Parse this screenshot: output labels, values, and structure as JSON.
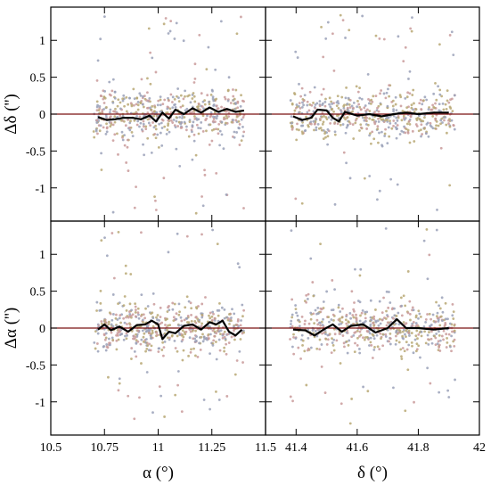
{
  "chart_data": {
    "type": "scatter",
    "x_axes": [
      {
        "label": "α (°)",
        "ticks": [
          "10.5",
          "10.75",
          "11",
          "11.25",
          "11.5"
        ],
        "range": [
          10.5,
          11.5
        ]
      },
      {
        "label": "δ (°)",
        "ticks": [
          "41.4",
          "41.6",
          "41.8",
          "42"
        ],
        "range": [
          41.3,
          42.0
        ]
      }
    ],
    "y_axes": [
      {
        "label": "Δδ ('')",
        "ticks": [
          "1",
          "0.5",
          "0",
          "-0.5",
          "-1"
        ],
        "range": [
          -1.45,
          1.45
        ]
      },
      {
        "label": "Δα ('')",
        "ticks": [
          "1",
          "0.5",
          "0",
          "-0.5",
          "-1"
        ],
        "range": [
          -1.45,
          1.45
        ]
      }
    ],
    "colors": {
      "point_a": "#b9a874",
      "point_b": "#c99a9a",
      "point_c": "#9aa1b8",
      "zero_line": "#7a1010",
      "trend": "#000000"
    },
    "panels": [
      {
        "id": "top-left",
        "xaxis": 0,
        "yaxis": 0,
        "seed": 11,
        "point_x_range": [
          10.7,
          11.4
        ],
        "n_points": 560,
        "trend": [
          [
            10.72,
            -0.04
          ],
          [
            10.76,
            -0.08
          ],
          [
            10.8,
            -0.07
          ],
          [
            10.84,
            -0.05
          ],
          [
            10.88,
            -0.05
          ],
          [
            10.92,
            -0.07
          ],
          [
            10.96,
            -0.02
          ],
          [
            10.99,
            -0.1
          ],
          [
            11.02,
            0.02
          ],
          [
            11.05,
            -0.06
          ],
          [
            11.08,
            0.06
          ],
          [
            11.12,
            0.0
          ],
          [
            11.16,
            0.08
          ],
          [
            11.2,
            0.02
          ],
          [
            11.24,
            0.09
          ],
          [
            11.28,
            0.03
          ],
          [
            11.32,
            0.07
          ],
          [
            11.36,
            0.03
          ],
          [
            11.4,
            0.05
          ]
        ]
      },
      {
        "id": "top-right",
        "xaxis": 1,
        "yaxis": 0,
        "seed": 23,
        "point_x_range": [
          41.38,
          41.92
        ],
        "n_points": 560,
        "trend": [
          [
            41.39,
            -0.03
          ],
          [
            41.42,
            -0.08
          ],
          [
            41.45,
            -0.05
          ],
          [
            41.47,
            0.06
          ],
          [
            41.5,
            0.05
          ],
          [
            41.52,
            -0.05
          ],
          [
            41.54,
            -0.1
          ],
          [
            41.56,
            0.03
          ],
          [
            41.6,
            -0.02
          ],
          [
            41.64,
            0.0
          ],
          [
            41.68,
            -0.03
          ],
          [
            41.72,
            0.0
          ],
          [
            41.76,
            0.02
          ],
          [
            41.8,
            0.0
          ],
          [
            41.85,
            0.02
          ],
          [
            41.9,
            0.02
          ]
        ]
      },
      {
        "id": "bottom-left",
        "xaxis": 0,
        "yaxis": 1,
        "seed": 37,
        "point_x_range": [
          10.7,
          11.4
        ],
        "n_points": 560,
        "trend": [
          [
            10.72,
            -0.02
          ],
          [
            10.75,
            0.05
          ],
          [
            10.78,
            -0.03
          ],
          [
            10.82,
            0.02
          ],
          [
            10.86,
            -0.05
          ],
          [
            10.9,
            0.04
          ],
          [
            10.94,
            0.05
          ],
          [
            10.97,
            0.1
          ],
          [
            11.0,
            0.05
          ],
          [
            11.02,
            -0.15
          ],
          [
            11.05,
            -0.05
          ],
          [
            11.08,
            -0.07
          ],
          [
            11.12,
            0.03
          ],
          [
            11.16,
            0.05
          ],
          [
            11.2,
            -0.02
          ],
          [
            11.24,
            0.08
          ],
          [
            11.27,
            0.05
          ],
          [
            11.3,
            0.1
          ],
          [
            11.33,
            -0.05
          ],
          [
            11.36,
            -0.1
          ],
          [
            11.39,
            -0.02
          ]
        ]
      },
      {
        "id": "bottom-right",
        "xaxis": 1,
        "yaxis": 1,
        "seed": 51,
        "point_x_range": [
          41.38,
          41.92
        ],
        "n_points": 560,
        "trend": [
          [
            41.39,
            -0.02
          ],
          [
            41.43,
            -0.03
          ],
          [
            41.46,
            -0.1
          ],
          [
            41.49,
            -0.02
          ],
          [
            41.52,
            0.05
          ],
          [
            41.55,
            -0.05
          ],
          [
            41.58,
            0.03
          ],
          [
            41.62,
            0.05
          ],
          [
            41.66,
            -0.06
          ],
          [
            41.7,
            0.0
          ],
          [
            41.73,
            0.12
          ],
          [
            41.76,
            0.0
          ],
          [
            41.8,
            0.0
          ],
          [
            41.85,
            -0.02
          ],
          [
            41.9,
            0.0
          ]
        ]
      }
    ]
  }
}
